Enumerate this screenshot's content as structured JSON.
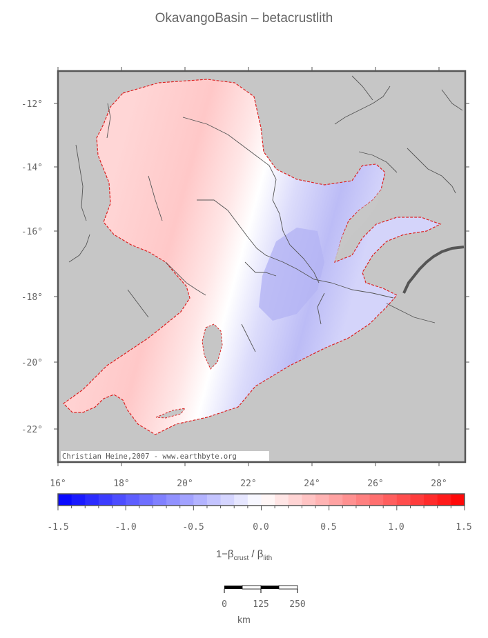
{
  "map": {
    "title": "OkavangoBasin – betacrustlith",
    "credit": "Christian Heine,2007 - www.earthbyte.org",
    "lon_ticks": [
      "16°",
      "18°",
      "20°",
      "22°",
      "24°",
      "26°",
      "28°"
    ],
    "lat_ticks": [
      "-12°",
      "-14°",
      "-16°",
      "-18°",
      "-20°",
      "-22°"
    ],
    "colors": {
      "land": "#c6c6c6",
      "rivers": "#555555",
      "outline": "#dd2222",
      "negative": "#0000ff",
      "positive": "#ff0000"
    }
  },
  "colorbar": {
    "ticks": [
      "-1.5",
      "-1.0",
      "-0.5",
      "0.0",
      "0.5",
      "1.0",
      "1.5"
    ],
    "label_main": "1−β",
    "label_sub1": "crust",
    "label_mid": " / β",
    "label_sub2": "lith"
  },
  "scalebar": {
    "ticks": [
      "0",
      "125",
      "250"
    ],
    "unit": "km"
  }
}
